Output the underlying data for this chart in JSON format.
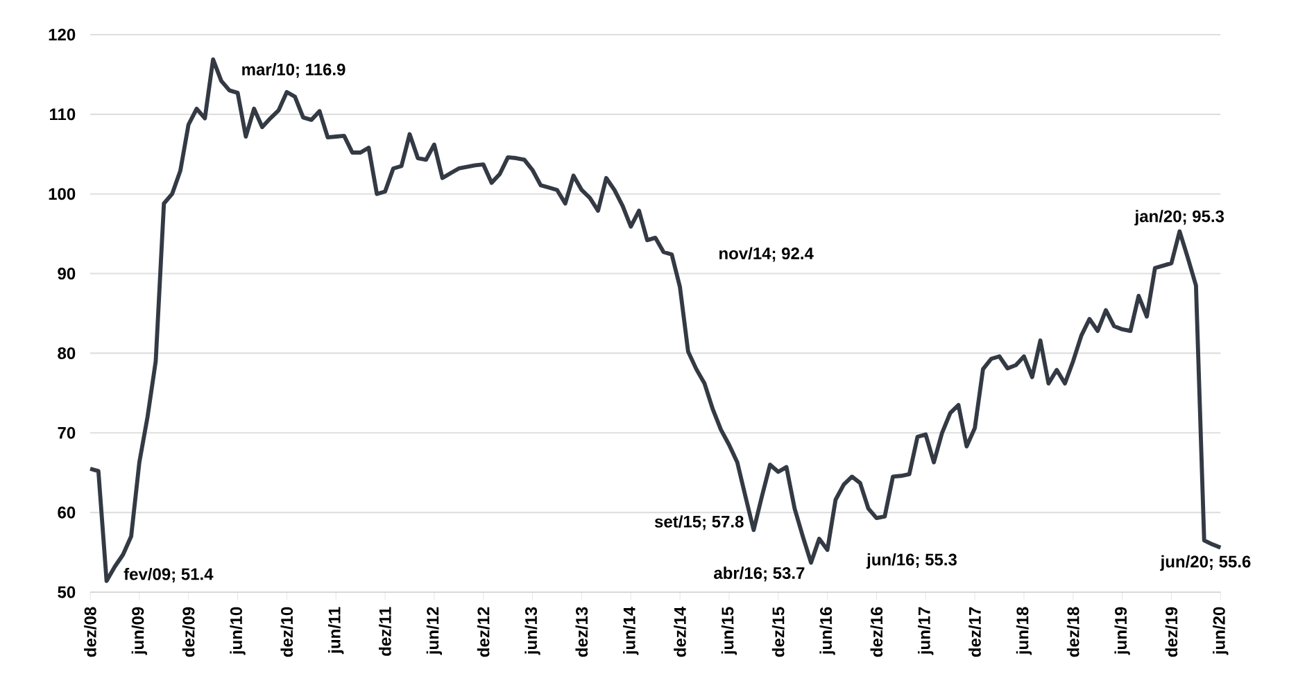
{
  "chart_data": {
    "type": "line",
    "color": "#343a44",
    "grid": "y",
    "x": [
      "2008-12",
      "2009-01",
      "2009-02",
      "2009-03",
      "2009-04",
      "2009-05",
      "2009-06",
      "2009-07",
      "2009-08",
      "2009-09",
      "2009-10",
      "2009-11",
      "2009-12",
      "2010-01",
      "2010-02",
      "2010-03",
      "2010-04",
      "2010-05",
      "2010-06",
      "2010-07",
      "2010-08",
      "2010-09",
      "2010-10",
      "2010-11",
      "2010-12",
      "2011-01",
      "2011-02",
      "2011-03",
      "2011-04",
      "2011-05",
      "2011-06",
      "2011-07",
      "2011-08",
      "2011-09",
      "2011-10",
      "2011-11",
      "2011-12",
      "2012-01",
      "2012-02",
      "2012-03",
      "2012-04",
      "2012-05",
      "2012-06",
      "2012-07",
      "2012-08",
      "2012-09",
      "2012-10",
      "2012-11",
      "2012-12",
      "2013-01",
      "2013-02",
      "2013-03",
      "2013-04",
      "2013-05",
      "2013-06",
      "2013-07",
      "2013-08",
      "2013-09",
      "2013-10",
      "2013-11",
      "2013-12",
      "2014-01",
      "2014-02",
      "2014-03",
      "2014-04",
      "2014-05",
      "2014-06",
      "2014-07",
      "2014-08",
      "2014-09",
      "2014-10",
      "2014-11",
      "2014-12",
      "2015-01",
      "2015-02",
      "2015-03",
      "2015-04",
      "2015-05",
      "2015-06",
      "2015-07",
      "2015-08",
      "2015-09",
      "2015-10",
      "2015-11",
      "2015-12",
      "2016-01",
      "2016-02",
      "2016-03",
      "2016-04",
      "2016-05",
      "2016-06",
      "2016-07",
      "2016-08",
      "2016-09",
      "2016-10",
      "2016-11",
      "2016-12",
      "2017-01",
      "2017-02",
      "2017-03",
      "2017-04",
      "2017-05",
      "2017-06",
      "2017-07",
      "2017-08",
      "2017-09",
      "2017-10",
      "2017-11",
      "2017-12",
      "2018-01",
      "2018-02",
      "2018-03",
      "2018-04",
      "2018-05",
      "2018-06",
      "2018-07",
      "2018-08",
      "2018-09",
      "2018-10",
      "2018-11",
      "2018-12",
      "2019-01",
      "2019-02",
      "2019-03",
      "2019-04",
      "2019-05",
      "2019-06",
      "2019-07",
      "2019-08",
      "2019-09",
      "2019-10",
      "2019-11",
      "2019-12",
      "2020-01",
      "2020-02",
      "2020-03",
      "2020-04",
      "2020-05",
      "2020-06"
    ],
    "values": [
      65.5,
      65.2,
      51.4,
      53.2,
      54.7,
      57,
      66.3,
      72,
      79,
      98.8,
      100,
      102.9,
      108.7,
      110.7,
      109.5,
      116.9,
      114.2,
      113,
      112.7,
      107.2,
      110.7,
      108.4,
      109.5,
      110.5,
      112.8,
      112.2,
      109.6,
      109.3,
      110.4,
      107.1,
      107.2,
      107.3,
      105.2,
      105.2,
      105.8,
      100,
      100.3,
      103.2,
      103.5,
      107.5,
      104.5,
      104.3,
      106.2,
      102,
      102.6,
      103.2,
      103.4,
      103.6,
      103.7,
      101.4,
      102.5,
      104.6,
      104.5,
      104.3,
      103,
      101.1,
      100.8,
      100.5,
      98.8,
      102.3,
      100.5,
      99.5,
      97.9,
      102,
      100.5,
      98.5,
      95.9,
      97.9,
      94.2,
      94.5,
      92.7,
      92.4,
      88.3,
      80.2,
      78,
      76.2,
      73,
      70.4,
      68.5,
      66.3,
      62,
      57.8,
      62,
      66,
      65.1,
      65.7,
      60.5,
      57,
      53.7,
      56.7,
      55.3,
      61.6,
      63.5,
      64.5,
      63.7,
      60.5,
      59.3,
      59.5,
      64.5,
      64.6,
      64.8,
      69.5,
      69.8,
      66.3,
      70,
      72.5,
      73.5,
      68.3,
      70.6,
      78,
      79.3,
      79.6,
      78.1,
      78.5,
      79.6,
      77,
      81.6,
      76.2,
      77.9,
      76.2,
      79,
      82.2,
      84.3,
      82.8,
      85.4,
      83.4,
      83,
      82.8,
      87.2,
      84.6,
      90.7,
      91,
      91.3,
      95.3,
      92,
      88.5,
      56.5,
      56,
      55.6
    ],
    "xlim": [
      "2008-12",
      "2020-06"
    ],
    "xticks": [
      {
        "value": "2008-12",
        "label": "dez/08"
      },
      {
        "value": "2009-06",
        "label": "jun/09"
      },
      {
        "value": "2009-12",
        "label": "dez/09"
      },
      {
        "value": "2010-06",
        "label": "jun/10"
      },
      {
        "value": "2010-12",
        "label": "dez/10"
      },
      {
        "value": "2011-06",
        "label": "jun/11"
      },
      {
        "value": "2011-12",
        "label": "dez/11"
      },
      {
        "value": "2012-06",
        "label": "jun/12"
      },
      {
        "value": "2012-12",
        "label": "dez/12"
      },
      {
        "value": "2013-06",
        "label": "jun/13"
      },
      {
        "value": "2013-12",
        "label": "dez/13"
      },
      {
        "value": "2014-06",
        "label": "jun/14"
      },
      {
        "value": "2014-12",
        "label": "dez/14"
      },
      {
        "value": "2015-06",
        "label": "jun/15"
      },
      {
        "value": "2015-12",
        "label": "dez/15"
      },
      {
        "value": "2016-06",
        "label": "jun/16"
      },
      {
        "value": "2016-12",
        "label": "dez/16"
      },
      {
        "value": "2017-06",
        "label": "jun/17"
      },
      {
        "value": "2017-12",
        "label": "dez/17"
      },
      {
        "value": "2018-06",
        "label": "jun/18"
      },
      {
        "value": "2018-12",
        "label": "dez/18"
      },
      {
        "value": "2019-06",
        "label": "jun/19"
      },
      {
        "value": "2019-12",
        "label": "dez/19"
      },
      {
        "value": "2020-06",
        "label": "jun/20"
      }
    ],
    "ylim": [
      50,
      120
    ],
    "yticks": [
      50,
      60,
      70,
      80,
      90,
      100,
      110,
      120
    ],
    "annotations": [
      {
        "text": "mar/10; 116.9",
        "x": "2010-03",
        "y": 116.9
      },
      {
        "text": "fev/09; 51.4",
        "x": "2009-02",
        "y": 51.4
      },
      {
        "text": "nov/14; 92.4",
        "x": "2014-11",
        "y": 92.4
      },
      {
        "text": "set/15; 57.8",
        "x": "2015-09",
        "y": 57.8
      },
      {
        "text": "abr/16; 53.7",
        "x": "2016-04",
        "y": 53.7
      },
      {
        "text": "jun/16; 55.3",
        "x": "2016-06",
        "y": 55.3
      },
      {
        "text": "jan/20; 95.3",
        "x": "2020-01",
        "y": 95.3
      },
      {
        "text": "jun/20; 55.6",
        "x": "2020-06",
        "y": 55.6
      }
    ]
  }
}
